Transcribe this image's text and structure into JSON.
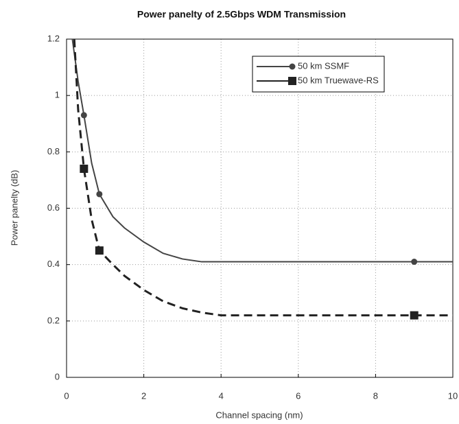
{
  "chart_data": {
    "type": "line",
    "title": "Power panelty of 2.5Gbps WDM Transmission",
    "x_label": "Channel spacing (nm)",
    "y_label": "Power panelty (dB)",
    "xlim": [
      0,
      10
    ],
    "xticks": [
      0,
      2,
      4,
      6,
      8,
      10
    ],
    "ylim": [
      0,
      1.2
    ],
    "yticks": [
      0,
      0.2,
      0.4,
      0.6,
      0.8,
      1,
      1.2
    ],
    "grid": true,
    "legend": "upper right",
    "series": [
      {
        "name": "50 km SSMF",
        "color": "#444444",
        "dash": false,
        "marker": "circle",
        "x": [
          0.15,
          0.3,
          0.45,
          0.65,
          0.85,
          1.2,
          1.5,
          2,
          2.5,
          3,
          3.5,
          4,
          6,
          9,
          10
        ],
        "values": [
          1.2,
          1.05,
          0.93,
          0.76,
          0.65,
          0.57,
          0.53,
          0.48,
          0.44,
          0.42,
          0.41,
          0.41,
          0.41,
          0.41,
          0.41
        ],
        "points": {
          "x": [
            0.45,
            0.85,
            9
          ],
          "values": [
            0.93,
            0.65,
            0.41
          ]
        }
      },
      {
        "name": "50 km Truewave-RS",
        "color": "#222222",
        "dash": true,
        "marker": "square",
        "x": [
          0.2,
          0.3,
          0.45,
          0.65,
          0.85,
          1.2,
          1.5,
          2,
          2.5,
          3,
          3.5,
          4,
          6,
          9,
          10
        ],
        "values": [
          1.2,
          0.95,
          0.74,
          0.56,
          0.45,
          0.4,
          0.36,
          0.31,
          0.27,
          0.245,
          0.23,
          0.22,
          0.22,
          0.22,
          0.22
        ],
        "points": {
          "x": [
            0.45,
            0.85,
            9
          ],
          "values": [
            0.74,
            0.45,
            0.22
          ]
        }
      }
    ]
  }
}
